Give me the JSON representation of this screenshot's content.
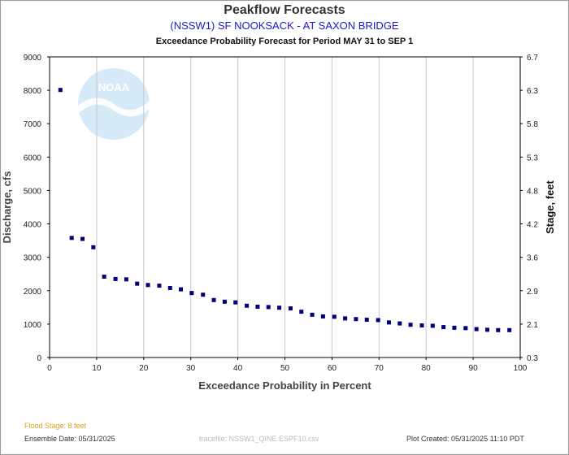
{
  "header": {
    "title": "Peakflow Forecasts",
    "station": "(NSSW1) SF NOOKSACK - AT SAXON BRIDGE",
    "subtitle": "Exceedance Probability Forecast for Period MAY 31 to SEP 1"
  },
  "footer": {
    "flood_stage": "Flood Stage: 8 feet",
    "ensemble_date": "Ensemble Date: 05/31/2025",
    "tracefile": "tracefile: NSSW1_QINE.ESPF10.csv",
    "plot_created": "Plot Created: 05/31/2025 11:10 PDT"
  },
  "logo": {
    "text": "NOAA"
  },
  "colors": {
    "marker": "#00007a",
    "grid": "#c8c8c8",
    "logo": "#c8e3f4"
  },
  "chart_data": {
    "type": "scatter",
    "xlabel": "Exceedance Probability in Percent",
    "ylabel": "Discharge, cfs",
    "y2label": "Stage, feet",
    "xlim": [
      0,
      100
    ],
    "ylim": [
      0,
      9000
    ],
    "x_ticks": [
      "0",
      "10",
      "20",
      "30",
      "40",
      "50",
      "60",
      "70",
      "80",
      "90",
      "100"
    ],
    "y_ticks": [
      "0",
      "1000",
      "2000",
      "3000",
      "4000",
      "5000",
      "6000",
      "7000",
      "8000",
      "9000"
    ],
    "y2_ticks": [
      "0.3",
      "2.1",
      "2.9",
      "3.6",
      "4.2",
      "4.8",
      "5.3",
      "5.8",
      "6.3",
      "6.7"
    ],
    "grid": "vertical",
    "points": [
      {
        "x": 2.3,
        "y": 8010
      },
      {
        "x": 4.7,
        "y": 3580
      },
      {
        "x": 7.0,
        "y": 3550
      },
      {
        "x": 9.3,
        "y": 3300
      },
      {
        "x": 11.6,
        "y": 2420
      },
      {
        "x": 14.0,
        "y": 2350
      },
      {
        "x": 16.3,
        "y": 2340
      },
      {
        "x": 18.6,
        "y": 2210
      },
      {
        "x": 20.9,
        "y": 2170
      },
      {
        "x": 23.3,
        "y": 2150
      },
      {
        "x": 25.6,
        "y": 2080
      },
      {
        "x": 27.9,
        "y": 2040
      },
      {
        "x": 30.2,
        "y": 1930
      },
      {
        "x": 32.6,
        "y": 1880
      },
      {
        "x": 34.9,
        "y": 1720
      },
      {
        "x": 37.2,
        "y": 1670
      },
      {
        "x": 39.5,
        "y": 1650
      },
      {
        "x": 41.9,
        "y": 1550
      },
      {
        "x": 44.2,
        "y": 1520
      },
      {
        "x": 46.5,
        "y": 1510
      },
      {
        "x": 48.8,
        "y": 1490
      },
      {
        "x": 51.2,
        "y": 1470
      },
      {
        "x": 53.5,
        "y": 1370
      },
      {
        "x": 55.8,
        "y": 1280
      },
      {
        "x": 58.1,
        "y": 1230
      },
      {
        "x": 60.5,
        "y": 1220
      },
      {
        "x": 62.8,
        "y": 1170
      },
      {
        "x": 65.1,
        "y": 1150
      },
      {
        "x": 67.4,
        "y": 1130
      },
      {
        "x": 69.8,
        "y": 1120
      },
      {
        "x": 72.1,
        "y": 1050
      },
      {
        "x": 74.4,
        "y": 1020
      },
      {
        "x": 76.7,
        "y": 980
      },
      {
        "x": 79.1,
        "y": 960
      },
      {
        "x": 81.4,
        "y": 950
      },
      {
        "x": 83.7,
        "y": 910
      },
      {
        "x": 86.0,
        "y": 890
      },
      {
        "x": 88.4,
        "y": 880
      },
      {
        "x": 90.7,
        "y": 850
      },
      {
        "x": 93.0,
        "y": 830
      },
      {
        "x": 95.3,
        "y": 820
      },
      {
        "x": 97.7,
        "y": 820
      }
    ]
  }
}
